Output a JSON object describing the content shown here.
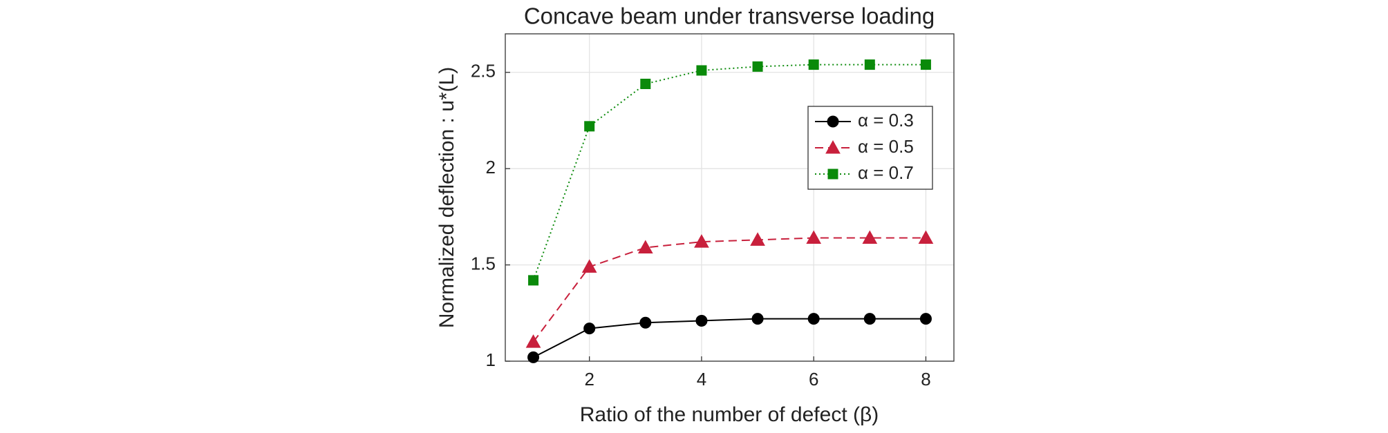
{
  "chart_data": {
    "type": "line",
    "title": "Concave beam under transverse loading",
    "xlabel": "Ratio of the number of defect (β)",
    "ylabel": "Normalized deflection : u*(L)",
    "x": [
      1,
      2,
      3,
      4,
      5,
      6,
      7,
      8
    ],
    "series": [
      {
        "name": "α = 0.3",
        "color": "#000000",
        "marker": "circle",
        "dash": "solid",
        "values": [
          1.02,
          1.17,
          1.2,
          1.21,
          1.22,
          1.22,
          1.22,
          1.22
        ]
      },
      {
        "name": "α = 0.5",
        "color": "#c8203c",
        "marker": "triangle",
        "dash": "dashed",
        "values": [
          1.1,
          1.49,
          1.59,
          1.62,
          1.63,
          1.64,
          1.64,
          1.64
        ]
      },
      {
        "name": "α = 0.7",
        "color": "#0a8a0a",
        "marker": "square",
        "dash": "dotted",
        "values": [
          1.42,
          2.22,
          2.44,
          2.51,
          2.53,
          2.54,
          2.54,
          2.54
        ]
      }
    ],
    "xlim": [
      0.5,
      8.5
    ],
    "xticks": [
      2,
      4,
      6,
      8
    ],
    "ylim": [
      1,
      2.7
    ],
    "yticks": [
      1,
      1.5,
      2,
      2.5
    ],
    "grid": true,
    "legend": "northeast"
  }
}
